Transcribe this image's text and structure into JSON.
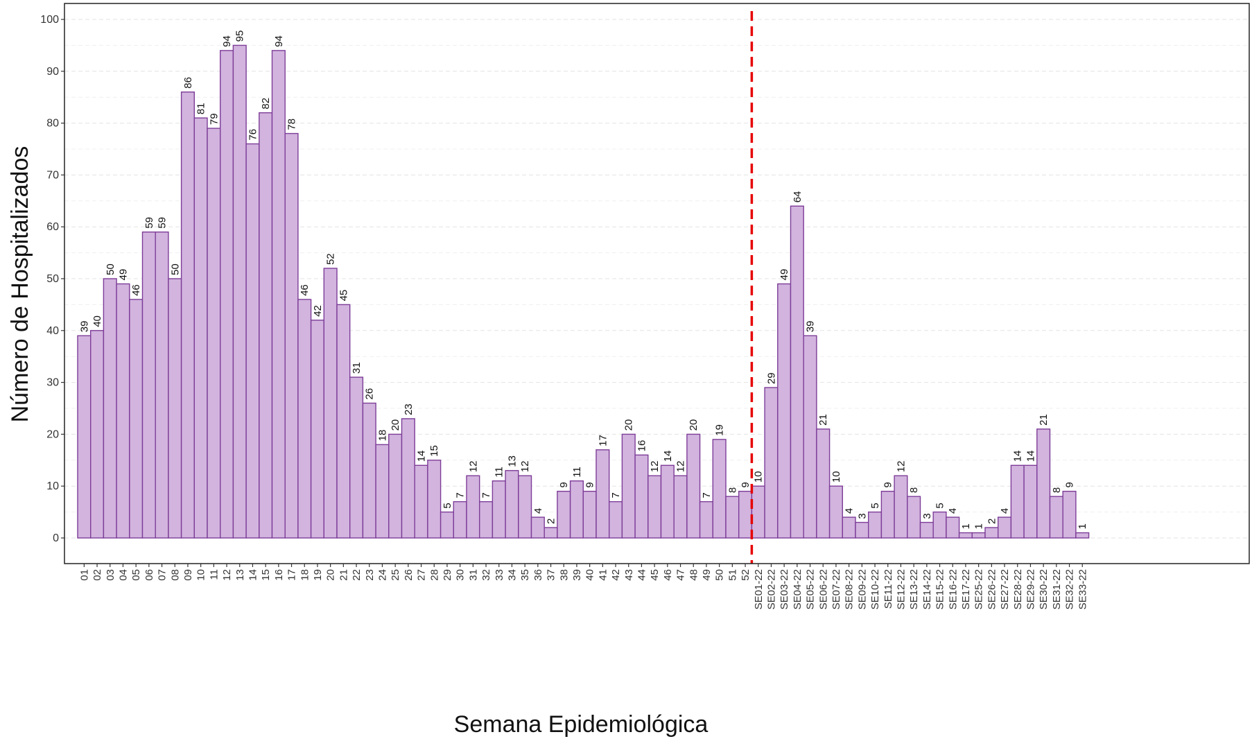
{
  "chart_data": {
    "type": "bar",
    "xlabel": "Semana Epidemiológica",
    "ylabel": "Número de Hospitalizados",
    "ylim": [
      0,
      100
    ],
    "yticks": [
      0,
      10,
      20,
      30,
      40,
      50,
      60,
      70,
      80,
      90,
      100
    ],
    "grid": "horizontal dashed",
    "bar_fill": "#d2b4de",
    "bar_stroke": "#7d3c98",
    "divider": {
      "after_category": "52",
      "color": "#e60000",
      "style": "dashed"
    },
    "categories": [
      "01",
      "02",
      "03",
      "04",
      "05",
      "06",
      "07",
      "08",
      "09",
      "10",
      "11",
      "12",
      "13",
      "14",
      "15",
      "16",
      "17",
      "18",
      "19",
      "20",
      "21",
      "22",
      "23",
      "24",
      "25",
      "26",
      "27",
      "28",
      "29",
      "30",
      "31",
      "32",
      "33",
      "34",
      "35",
      "36",
      "37",
      "38",
      "39",
      "40",
      "41",
      "42",
      "43",
      "44",
      "45",
      "46",
      "47",
      "48",
      "49",
      "50",
      "51",
      "52",
      "SE01-22",
      "SE02-22",
      "SE03-22",
      "SE04-22",
      "SE05-22",
      "SE06-22",
      "SE07-22",
      "SE08-22",
      "SE09-22",
      "SE10-22",
      "SE11-22",
      "SE12-22",
      "SE13-22",
      "SE14-22",
      "SE15-22",
      "SE16-22",
      "SE17-22",
      "SE25-22",
      "SE26-22",
      "SE27-22",
      "SE28-22",
      "SE29-22",
      "SE30-22",
      "SE31-22",
      "SE32-22",
      "SE33-22"
    ],
    "values": [
      39,
      40,
      50,
      49,
      46,
      59,
      59,
      50,
      86,
      81,
      79,
      94,
      95,
      76,
      82,
      94,
      78,
      46,
      42,
      52,
      45,
      31,
      26,
      18,
      20,
      23,
      14,
      15,
      5,
      7,
      12,
      7,
      11,
      13,
      12,
      4,
      2,
      9,
      11,
      9,
      17,
      7,
      20,
      16,
      12,
      14,
      12,
      20,
      7,
      19,
      8,
      9,
      10,
      29,
      49,
      64,
      39,
      21,
      10,
      4,
      3,
      5,
      9,
      12,
      8,
      3,
      5,
      4,
      1,
      1,
      2,
      4,
      14,
      14,
      21,
      8,
      9,
      1
    ]
  }
}
